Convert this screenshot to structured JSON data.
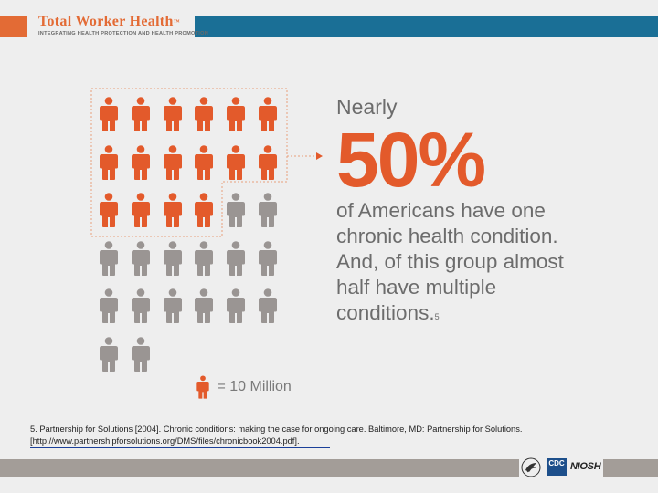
{
  "header": {
    "title": "Total Worker Health",
    "trademark": "™",
    "subtitle": "Integrating Health Protection and Health Promotion"
  },
  "infographic": {
    "total_icons": 32,
    "highlighted_icons": 16,
    "highlight_color": "#e35a2b",
    "base_color": "#9a9593",
    "lead": "Nearly",
    "big_stat": "50%",
    "text_lines": [
      "of Americans have one",
      "chronic health condition.",
      "And, of this group almost",
      "half have multiple",
      "conditions."
    ],
    "footnote_ref": "5",
    "legend": "= 10 Million"
  },
  "footnote": {
    "citation": "5. Partnership for Solutions [2004]. Chronic conditions: making the case for ongoing care. Baltimore, MD: Partnership for Solutions.",
    "link": "[http://www.partnershipforsolutions.org/DMS/files/chronicbook2004.pdf]."
  },
  "footer": {
    "cdc_label": "CDC",
    "niosh_label": "NIOSH",
    "bar_color": "#a39d98"
  }
}
